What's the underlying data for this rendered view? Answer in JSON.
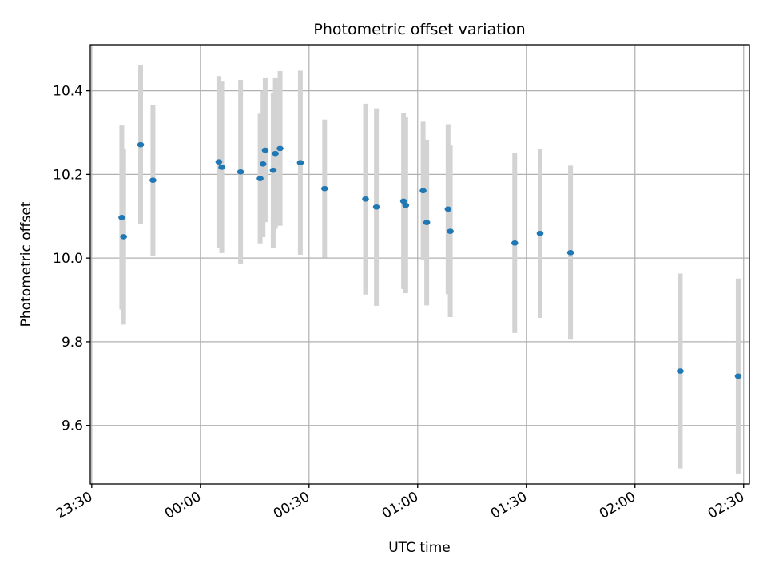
{
  "chart_data": {
    "type": "scatter",
    "title": "Photometric offset variation",
    "xlabel": "UTC time",
    "ylabel": "Photometric offset",
    "x_ticks": [
      {
        "value": "23:30",
        "label": "23:30"
      },
      {
        "value": "00:00",
        "label": "00:00"
      },
      {
        "value": "00:30",
        "label": "00:30"
      },
      {
        "value": "01:00",
        "label": "01:00"
      },
      {
        "value": "01:30",
        "label": "01:30"
      },
      {
        "value": "02:00",
        "label": "02:00"
      },
      {
        "value": "02:30",
        "label": "02:30"
      }
    ],
    "y_ticks": [
      {
        "value": 9.6,
        "label": "9.6"
      },
      {
        "value": 9.8,
        "label": "9.8"
      },
      {
        "value": 10.0,
        "label": "10.0"
      },
      {
        "value": 10.2,
        "label": "10.2"
      },
      {
        "value": 10.4,
        "label": "10.4"
      }
    ],
    "xlim": [
      "23:29.6",
      "02:31.6"
    ],
    "ylim": [
      9.46,
      10.51
    ],
    "grid": true,
    "colors": {
      "points": "#1f77b4",
      "errorbars": "#d3d3d3",
      "grid": "#b0b0b0"
    },
    "series": [
      {
        "points": [
          {
            "x": "23:38.3",
            "y": 10.097,
            "yerr": 0.22
          },
          {
            "x": "23:38.8",
            "y": 10.051,
            "yerr": 0.21
          },
          {
            "x": "23:43.5",
            "y": 10.271,
            "yerr": 0.19
          },
          {
            "x": "23:46.9",
            "y": 10.186,
            "yerr": 0.18
          },
          {
            "x": "00:05.1",
            "y": 10.23,
            "yerr": 0.205
          },
          {
            "x": "00:05.9",
            "y": 10.217,
            "yerr": 0.205
          },
          {
            "x": "00:11.1",
            "y": 10.206,
            "yerr": 0.22
          },
          {
            "x": "00:16.5",
            "y": 10.19,
            "yerr": 0.155
          },
          {
            "x": "00:17.3",
            "y": 10.225,
            "yerr": 0.175
          },
          {
            "x": "00:17.9",
            "y": 10.258,
            "yerr": 0.172
          },
          {
            "x": "00:20.1",
            "y": 10.21,
            "yerr": 0.185
          },
          {
            "x": "00:20.7",
            "y": 10.25,
            "yerr": 0.18
          },
          {
            "x": "00:22.0",
            "y": 10.262,
            "yerr": 0.185
          },
          {
            "x": "00:27.6",
            "y": 10.228,
            "yerr": 0.22
          },
          {
            "x": "00:34.3",
            "y": 10.166,
            "yerr": 0.165
          },
          {
            "x": "00:45.6",
            "y": 10.141,
            "yerr": 0.228
          },
          {
            "x": "00:48.6",
            "y": 10.122,
            "yerr": 0.236
          },
          {
            "x": "00:56.1",
            "y": 10.136,
            "yerr": 0.21
          },
          {
            "x": "00:56.7",
            "y": 10.126,
            "yerr": 0.21
          },
          {
            "x": "01:01.5",
            "y": 10.161,
            "yerr": 0.165
          },
          {
            "x": "01:02.5",
            "y": 10.085,
            "yerr": 0.198
          },
          {
            "x": "01:08.4",
            "y": 10.117,
            "yerr": 0.203
          },
          {
            "x": "01:09.0",
            "y": 10.064,
            "yerr": 0.205
          },
          {
            "x": "01:26.8",
            "y": 10.036,
            "yerr": 0.215
          },
          {
            "x": "01:33.8",
            "y": 10.059,
            "yerr": 0.202
          },
          {
            "x": "01:42.2",
            "y": 10.013,
            "yerr": 0.208
          },
          {
            "x": "02:12.5",
            "y": 9.73,
            "yerr": 0.233
          },
          {
            "x": "02:28.5",
            "y": 9.718,
            "yerr": 0.233
          }
        ]
      }
    ]
  }
}
